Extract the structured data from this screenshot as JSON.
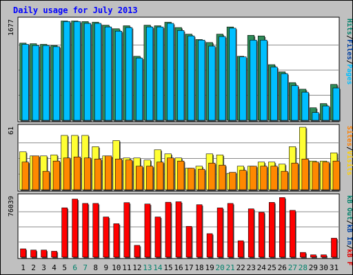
{
  "chart_data": [
    {
      "type": "bar",
      "title": "Daily usage for July 2013",
      "ymax_label": "1677",
      "ymax": 1677,
      "right_axis_labels": [
        {
          "text": "Pages",
          "color": "#00bfff"
        },
        {
          "text": "Files",
          "color": "#0040a0"
        },
        {
          "text": "Hits",
          "color": "#00806a"
        }
      ],
      "categories": [
        "1",
        "2",
        "3",
        "4",
        "5",
        "6",
        "7",
        "8",
        "9",
        "10",
        "11",
        "12",
        "13",
        "14",
        "15",
        "16",
        "17",
        "18",
        "19",
        "20",
        "21",
        "22",
        "23",
        "24",
        "25",
        "26",
        "27",
        "28",
        "29",
        "30",
        "31"
      ],
      "weekend_days": [
        "6",
        "7",
        "13",
        "14",
        "20",
        "21",
        "27",
        "28"
      ],
      "series": [
        {
          "name": "Hits",
          "color": "#2e8b57",
          "values": [
            1290,
            1280,
            1270,
            1250,
            1660,
            1660,
            1650,
            1640,
            1590,
            1530,
            1580,
            1070,
            1590,
            1580,
            1640,
            1550,
            1440,
            1350,
            1300,
            1440,
            1560,
            1070,
            1420,
            1410,
            930,
            810,
            630,
            520,
            210,
            280,
            600
          ]
        },
        {
          "name": "Files",
          "color": "#00bfff",
          "values": [
            1270,
            1250,
            1250,
            1230,
            1650,
            1650,
            1620,
            1620,
            1560,
            1490,
            1550,
            1040,
            1560,
            1560,
            1620,
            1500,
            1410,
            1340,
            1240,
            1400,
            1540,
            1060,
            1340,
            1340,
            890,
            780,
            580,
            470,
            130,
            240,
            540
          ]
        }
      ]
    },
    {
      "type": "bar",
      "ymax_label": "61",
      "ymax": 61,
      "right_axis_labels": [
        {
          "text": "Visits",
          "color": "#ffd000"
        },
        {
          "text": "Sites",
          "color": "#ff8000"
        }
      ],
      "series": [
        {
          "name": "Visits",
          "color": "#ffff33",
          "values": [
            37,
            33,
            33,
            34,
            53,
            53,
            53,
            42,
            33,
            48,
            31,
            31,
            29,
            39,
            35,
            31,
            21,
            23,
            35,
            34,
            16,
            23,
            23,
            27,
            27,
            25,
            42,
            61,
            28,
            28,
            36
          ]
        },
        {
          "name": "Sites",
          "color": "#ff8800",
          "values": [
            27,
            33,
            18,
            28,
            31,
            32,
            31,
            30,
            33,
            30,
            29,
            23,
            23,
            27,
            31,
            28,
            21,
            20,
            26,
            24,
            17,
            19,
            23,
            23,
            23,
            18,
            26,
            30,
            27,
            27,
            28
          ]
        }
      ]
    },
    {
      "type": "bar",
      "ymax_label": "76039",
      "ymax": 76039,
      "right_axis_labels": [
        {
          "text": "kB F",
          "color": "#e00000"
        },
        {
          "text": "kB In",
          "color": "#0040a0"
        },
        {
          "text": "kB Out",
          "color": "#00806a"
        }
      ],
      "series": [
        {
          "name": "kB F",
          "color": "#ff0000",
          "values": [
            10400,
            8900,
            8900,
            7400,
            62000,
            73000,
            67500,
            67500,
            50500,
            42000,
            68500,
            14800,
            66800,
            50500,
            69000,
            69600,
            38700,
            65900,
            29500,
            61900,
            67500,
            20600,
            60700,
            56300,
            68800,
            74900,
            58800,
            5900,
            2900,
            2900,
            23800
          ]
        }
      ]
    }
  ]
}
